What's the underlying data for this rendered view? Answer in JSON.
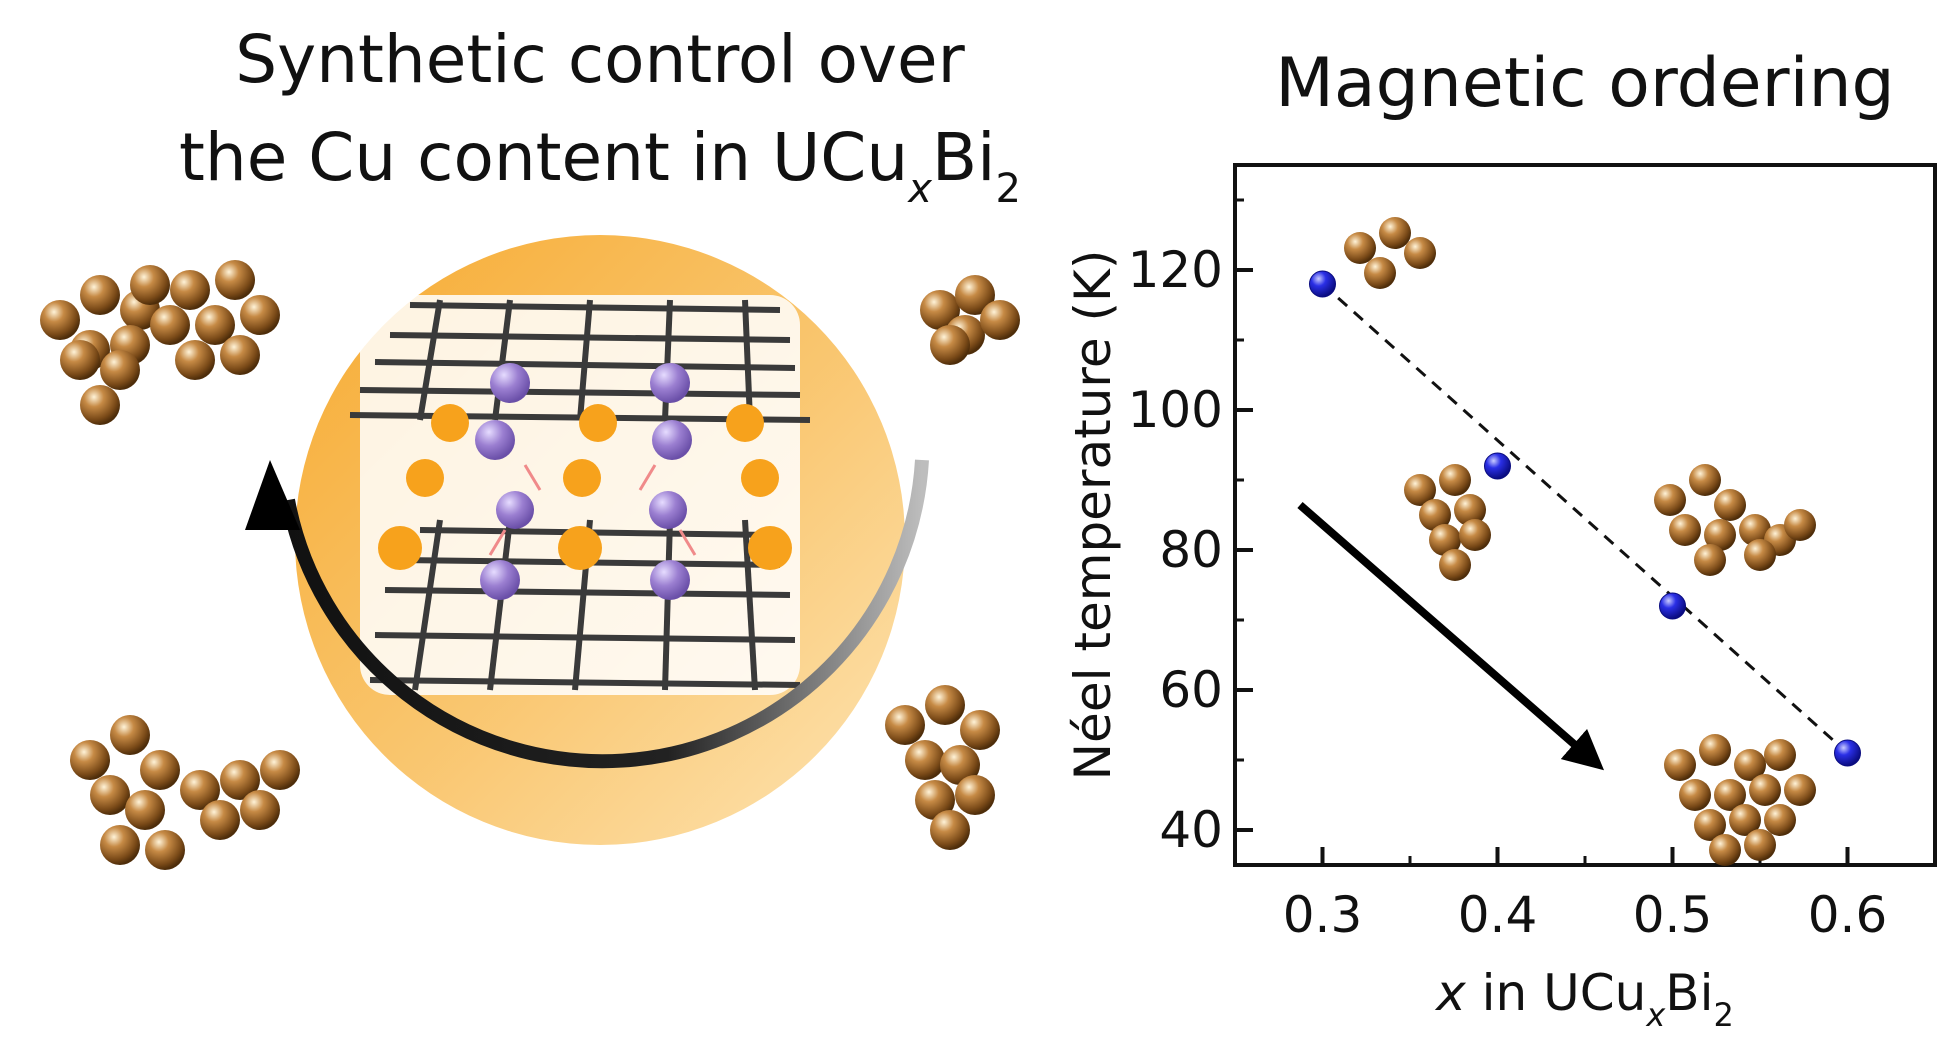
{
  "left_panel": {
    "title_line1": "Synthetic control over",
    "title_line2_prefix": "the Cu content in UCu",
    "title_line2_sub": "x",
    "title_line2_mid": "Bi",
    "title_line2_sub2": "2"
  },
  "colors": {
    "orange": "#f5a623",
    "purple": "#9b7fd1",
    "copper": "#a0692e",
    "point": "#1f22e0",
    "axis": "#111111"
  },
  "chart_data": {
    "type": "scatter",
    "title": "Magnetic ordering",
    "xlabel_italic": "x",
    "xlabel_rest": " in UCu",
    "xlabel_sub": "x",
    "xlabel_mid": "Bi",
    "xlabel_sub2": "2",
    "ylabel": "Néel temperature (K)",
    "xlim": [
      0.25,
      0.65
    ],
    "ylim": [
      35,
      135
    ],
    "xticks": [
      "0.3",
      "0.4",
      "0.5",
      "0.6"
    ],
    "yticks": [
      "40",
      "60",
      "80",
      "100",
      "120"
    ],
    "x": [
      0.3,
      0.4,
      0.5,
      0.6
    ],
    "y": [
      118,
      92,
      72,
      51
    ],
    "fit_line": "dashed",
    "grid": false
  }
}
